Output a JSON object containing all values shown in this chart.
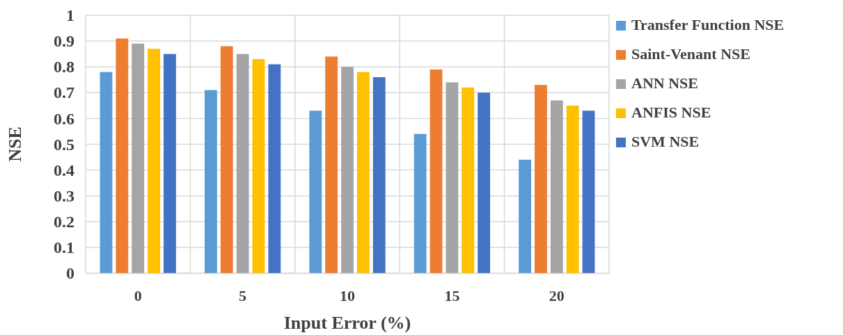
{
  "chart_data": {
    "type": "bar",
    "xlabel": "Input Error (%)",
    "ylabel": "NSE",
    "categories": [
      "0",
      "5",
      "10",
      "15",
      "20"
    ],
    "series": [
      {
        "name": "Transfer Function NSE",
        "color": "#5b9bd5",
        "values": [
          0.78,
          0.71,
          0.63,
          0.54,
          0.44
        ]
      },
      {
        "name": "Saint-Venant NSE",
        "color": "#ed7d31",
        "values": [
          0.91,
          0.88,
          0.84,
          0.79,
          0.73
        ]
      },
      {
        "name": "ANN NSE",
        "color": "#a5a5a5",
        "values": [
          0.89,
          0.85,
          0.8,
          0.74,
          0.67
        ]
      },
      {
        "name": "ANFIS NSE",
        "color": "#ffc000",
        "values": [
          0.87,
          0.83,
          0.78,
          0.72,
          0.65
        ]
      },
      {
        "name": "SVM NSE",
        "color": "#4472c4",
        "values": [
          0.85,
          0.81,
          0.76,
          0.7,
          0.63
        ]
      }
    ],
    "ylim": [
      0,
      1
    ],
    "yticks": [
      0,
      0.1,
      0.2,
      0.3,
      0.4,
      0.5,
      0.6,
      0.7,
      0.8,
      0.9,
      1
    ],
    "grid": true,
    "legend": "right"
  }
}
